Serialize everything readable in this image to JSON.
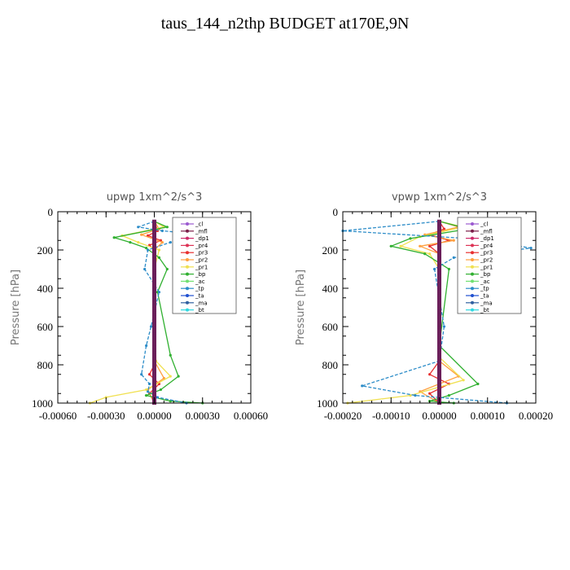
{
  "title": "taus_144_n2thp  BUDGET at170E,9N",
  "chart_data": [
    {
      "type": "line",
      "title": "upwp   1xm^2/s^3",
      "xlabel": "",
      "ylabel": "Pressure [hPa]",
      "xlim": [
        -0.0006,
        0.0006
      ],
      "ylim": [
        1000,
        0
      ],
      "xticks": [
        "-0.00060",
        "-0.00030",
        "0.00000",
        "0.00030",
        "0.00060"
      ],
      "yticks": [
        "0",
        "200",
        "400",
        "600",
        "800",
        "1000"
      ],
      "legend_position": "top-right",
      "series": [
        {
          "name": "_cl",
          "color": "#9b59d0",
          "x": [
            0,
            0
          ],
          "y": [
            50,
            1000
          ]
        },
        {
          "name": "_mfl",
          "color": "#7b1f4a",
          "x": [
            0,
            0
          ],
          "y": [
            50,
            1000
          ]
        },
        {
          "name": "_dp1",
          "color": "#cc2a6a",
          "x": [
            0,
            0
          ],
          "y": [
            50,
            1000
          ]
        },
        {
          "name": "_pr4",
          "color": "#dd3355",
          "x": [
            0,
            0
          ],
          "y": [
            50,
            1000
          ]
        },
        {
          "name": "_pr3",
          "color": "#e83030",
          "x": [
            0,
            2e-05,
            -4e-05,
            4e-05,
            -3e-05,
            0,
            0,
            -3e-05,
            3e-05,
            -3e-05,
            0
          ],
          "y": [
            50,
            100,
            125,
            150,
            175,
            200,
            800,
            850,
            900,
            950,
            1000
          ]
        },
        {
          "name": "_pr2",
          "color": "#ffa040",
          "x": [
            0,
            3e-05,
            -8e-05,
            5e-05,
            0,
            0,
            6e-05,
            -4e-05,
            0
          ],
          "y": [
            50,
            90,
            120,
            160,
            200,
            780,
            870,
            930,
            1000
          ]
        },
        {
          "name": "_pr1",
          "color": "#f0e050",
          "x": [
            0,
            6e-05,
            -0.0002,
            -0.0001,
            3e-05,
            0,
            1e-05,
            0.0001,
            -5e-05,
            -0.0003,
            -0.0004
          ],
          "y": [
            50,
            80,
            125,
            160,
            200,
            300,
            780,
            860,
            930,
            970,
            1000
          ]
        },
        {
          "name": "_bp",
          "color": "#30b030",
          "x": [
            0,
            8e-05,
            -0.00025,
            -0.00015,
            -5e-05,
            3e-05,
            8e-05,
            2e-05,
            0.0001,
            0.00015,
            4e-05,
            -5e-05,
            0.0001,
            0.0003
          ],
          "y": [
            50,
            80,
            135,
            160,
            190,
            240,
            300,
            420,
            750,
            860,
            930,
            960,
            990,
            1000
          ]
        },
        {
          "name": "_ac",
          "color": "#70e070",
          "x": [
            0,
            0
          ],
          "y": [
            50,
            1000
          ]
        },
        {
          "name": "_tp",
          "color": "#2c8cc8",
          "x": [
            0,
            -0.0001,
            5e-05,
            0.00045,
            0.0001,
            -4e-05,
            -6e-05,
            3e-05,
            -2e-05,
            -5e-05,
            -8e-05,
            -3e-05,
            -4e-05,
            2e-05,
            0.0002
          ],
          "y": [
            50,
            80,
            100,
            130,
            160,
            200,
            300,
            420,
            600,
            700,
            850,
            900,
            940,
            970,
            1000
          ]
        },
        {
          "name": "_ta",
          "color": "#2050d0",
          "x": [
            0,
            0
          ],
          "y": [
            50,
            1000
          ]
        },
        {
          "name": "_ma",
          "color": "#3060a0",
          "x": [
            0,
            0
          ],
          "y": [
            50,
            1000
          ]
        },
        {
          "name": "_bt",
          "color": "#30d8e0",
          "x": [
            0,
            0
          ],
          "y": [
            50,
            1000
          ]
        }
      ]
    },
    {
      "type": "line",
      "title": "vpwp   1xm^2/s^3",
      "xlabel": "",
      "ylabel": "Pressure [hPa]",
      "xlim": [
        -0.0002,
        0.0002
      ],
      "ylim": [
        1000,
        0
      ],
      "xticks": [
        "-0.00020",
        "-0.00010",
        "0.00000",
        "0.00010",
        "0.00020"
      ],
      "yticks": [
        "0",
        "200",
        "400",
        "600",
        "800",
        "1000"
      ],
      "legend_position": "top-right",
      "series": [
        {
          "name": "_cl",
          "color": "#9b59d0",
          "x": [
            0,
            0
          ],
          "y": [
            50,
            1000
          ]
        },
        {
          "name": "_mfl",
          "color": "#7b1f4a",
          "x": [
            0,
            0
          ],
          "y": [
            50,
            1000
          ]
        },
        {
          "name": "_dp1",
          "color": "#cc2a6a",
          "x": [
            0,
            0
          ],
          "y": [
            50,
            1000
          ]
        },
        {
          "name": "_pr4",
          "color": "#dd3355",
          "x": [
            0,
            0
          ],
          "y": [
            50,
            1000
          ]
        },
        {
          "name": "_pr3",
          "color": "#e83030",
          "x": [
            0,
            1e-05,
            -2e-05,
            2e-05,
            -2e-05,
            0,
            0,
            -2e-05,
            2e-05,
            -2e-05,
            0
          ],
          "y": [
            50,
            90,
            120,
            150,
            180,
            220,
            780,
            850,
            900,
            950,
            1000
          ]
        },
        {
          "name": "_pr2",
          "color": "#ffa040",
          "x": [
            0,
            4e-05,
            -3e-05,
            3e-05,
            -4e-05,
            0,
            0,
            4e-05,
            -4e-05,
            0
          ],
          "y": [
            50,
            80,
            120,
            150,
            180,
            220,
            780,
            860,
            940,
            1000
          ]
        },
        {
          "name": "_pr1",
          "color": "#f0e050",
          "x": [
            0,
            5e-05,
            -4e-05,
            -8e-05,
            -2e-05,
            0,
            0,
            5e-05,
            -6e-05,
            -0.00019
          ],
          "y": [
            50,
            80,
            130,
            180,
            220,
            300,
            760,
            880,
            960,
            1000
          ]
        },
        {
          "name": "_bp",
          "color": "#30b030",
          "x": [
            0,
            6e-05,
            -6e-05,
            -0.0001,
            -3e-05,
            2e-05,
            0,
            8e-05,
            2e-05,
            -2e-05,
            3e-05
          ],
          "y": [
            50,
            90,
            140,
            180,
            220,
            300,
            700,
            900,
            960,
            990,
            1000
          ]
        },
        {
          "name": "_ac",
          "color": "#70e070",
          "x": [
            0,
            0
          ],
          "y": [
            50,
            1000
          ]
        },
        {
          "name": "_tp",
          "color": "#2c8cc8",
          "x": [
            0,
            -0.0002,
            6e-05,
            0.00019,
            3e-05,
            -1e-05,
            1e-05,
            0,
            -0.00016,
            -5e-05,
            0.00014
          ],
          "y": [
            50,
            100,
            140,
            190,
            240,
            300,
            600,
            780,
            910,
            960,
            1000
          ]
        },
        {
          "name": "_ta",
          "color": "#2050d0",
          "x": [
            0,
            0
          ],
          "y": [
            50,
            1000
          ]
        },
        {
          "name": "_ma",
          "color": "#3060a0",
          "x": [
            0,
            0
          ],
          "y": [
            50,
            1000
          ]
        },
        {
          "name": "_bt",
          "color": "#30d8e0",
          "x": [
            0,
            0
          ],
          "y": [
            50,
            1000
          ]
        }
      ]
    }
  ]
}
